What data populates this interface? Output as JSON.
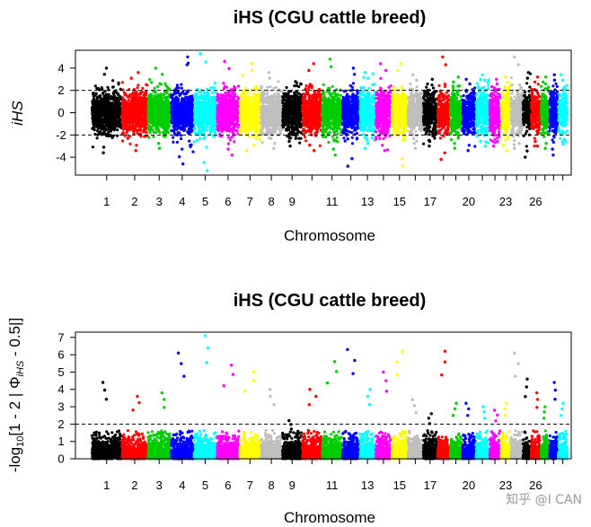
{
  "watermark": "知乎 @I CAN",
  "chart_data": [
    {
      "type": "scatter",
      "subtype": "manhattan",
      "title": "iHS (CGU cattle breed)",
      "xlabel": "Chromosome",
      "ylabel": "iHS",
      "ylim": [
        -5.6,
        5.6
      ],
      "yticks": [
        -4,
        -2,
        0,
        2,
        4
      ],
      "thresholds": [
        2,
        -2
      ],
      "threshold_style": "dashed",
      "grid": false,
      "chromosomes": [
        "1",
        "2",
        "3",
        "4",
        "5",
        "6",
        "7",
        "8",
        "9",
        "10",
        "11",
        "12",
        "13",
        "14",
        "15",
        "16",
        "17",
        "18",
        "19",
        "20",
        "21",
        "22",
        "23",
        "24",
        "25",
        "26",
        "27",
        "28",
        "29"
      ],
      "xtick_labels": [
        "1",
        "2",
        "3",
        "4",
        "5",
        "6",
        "7",
        "8",
        "9",
        "11",
        "13",
        "15",
        "17",
        "20",
        "23",
        "26"
      ],
      "xtick_chromosomes": [
        "1",
        "2",
        "3",
        "4",
        "5",
        "6",
        "7",
        "8",
        "9",
        "11",
        "13",
        "15",
        "17",
        "20",
        "23",
        "26"
      ],
      "colors": [
        "#000000",
        "#ff0000",
        "#00cd00",
        "#0000ff",
        "#00ffff",
        "#ff00ff",
        "#ffff00",
        "#bebebe"
      ],
      "series": [
        {
          "chr": "1",
          "min": -3.6,
          "max": 4.0
        },
        {
          "chr": "2",
          "min": -3.4,
          "max": 3.6
        },
        {
          "chr": "3",
          "min": -3.2,
          "max": 4.0
        },
        {
          "chr": "4",
          "min": -4.6,
          "max": 5.0
        },
        {
          "chr": "5",
          "min": -5.2,
          "max": 5.3
        },
        {
          "chr": "6",
          "min": -3.8,
          "max": 4.6
        },
        {
          "chr": "7",
          "min": -3.4,
          "max": 4.4
        },
        {
          "chr": "8",
          "min": -3.2,
          "max": 3.6
        },
        {
          "chr": "9",
          "min": -3.0,
          "max": 2.8
        },
        {
          "chr": "10",
          "min": -3.4,
          "max": 4.4
        },
        {
          "chr": "11",
          "min": -3.8,
          "max": 4.8
        },
        {
          "chr": "12",
          "min": -4.8,
          "max": 4.0
        },
        {
          "chr": "13",
          "min": -3.2,
          "max": 3.6
        },
        {
          "chr": "14",
          "min": -3.4,
          "max": 4.4
        },
        {
          "chr": "15",
          "min": -4.8,
          "max": 4.4
        },
        {
          "chr": "16",
          "min": -3.2,
          "max": 3.4
        },
        {
          "chr": "17",
          "min": -3.0,
          "max": 3.0
        },
        {
          "chr": "18",
          "min": -4.2,
          "max": 5.0
        },
        {
          "chr": "19",
          "min": -3.2,
          "max": 3.2
        },
        {
          "chr": "20",
          "min": -3.4,
          "max": 3.0
        },
        {
          "chr": "21",
          "min": -3.0,
          "max": 3.4
        },
        {
          "chr": "22",
          "min": -3.0,
          "max": 3.0
        },
        {
          "chr": "23",
          "min": -3.4,
          "max": 3.2
        },
        {
          "chr": "24",
          "min": -3.2,
          "max": 5.0
        },
        {
          "chr": "25",
          "min": -4.0,
          "max": 3.6
        },
        {
          "chr": "26",
          "min": -3.0,
          "max": 3.2
        },
        {
          "chr": "27",
          "min": -3.2,
          "max": 3.2
        },
        {
          "chr": "28",
          "min": -3.8,
          "max": 3.4
        },
        {
          "chr": "29",
          "min": -2.8,
          "max": 3.4
        }
      ]
    },
    {
      "type": "scatter",
      "subtype": "manhattan",
      "title": "iHS (CGU cattle breed)",
      "xlabel": "Chromosome",
      "ylabel_parts": [
        "-log",
        "10",
        "[1 - 2 | Φ",
        "iHS",
        " - 0.5|]"
      ],
      "ylim": [
        0,
        7.3
      ],
      "yticks": [
        0,
        1,
        2,
        3,
        4,
        5,
        6,
        7
      ],
      "thresholds": [
        2
      ],
      "threshold_style": "dashed",
      "grid": false,
      "chromosomes": [
        "1",
        "2",
        "3",
        "4",
        "5",
        "6",
        "7",
        "8",
        "9",
        "10",
        "11",
        "12",
        "13",
        "14",
        "15",
        "16",
        "17",
        "18",
        "19",
        "20",
        "21",
        "22",
        "23",
        "24",
        "25",
        "26",
        "27",
        "28",
        "29"
      ],
      "xtick_labels": [
        "1",
        "2",
        "3",
        "4",
        "5",
        "6",
        "7",
        "8",
        "9",
        "11",
        "13",
        "15",
        "17",
        "20",
        "23",
        "26"
      ],
      "xtick_chromosomes": [
        "1",
        "2",
        "3",
        "4",
        "5",
        "6",
        "7",
        "8",
        "9",
        "11",
        "13",
        "15",
        "17",
        "20",
        "23",
        "26"
      ],
      "colors": [
        "#000000",
        "#ff0000",
        "#00cd00",
        "#0000ff",
        "#00ffff",
        "#ff00ff",
        "#ffff00",
        "#bebebe"
      ],
      "series": [
        {
          "chr": "1",
          "max": 4.4
        },
        {
          "chr": "2",
          "max": 3.6
        },
        {
          "chr": "3",
          "max": 3.8
        },
        {
          "chr": "4",
          "max": 6.1
        },
        {
          "chr": "5",
          "max": 7.1
        },
        {
          "chr": "6",
          "max": 5.4
        },
        {
          "chr": "7",
          "max": 5.0
        },
        {
          "chr": "8",
          "max": 4.0
        },
        {
          "chr": "9",
          "max": 2.2
        },
        {
          "chr": "10",
          "max": 4.0
        },
        {
          "chr": "11",
          "max": 5.6
        },
        {
          "chr": "12",
          "max": 6.3
        },
        {
          "chr": "13",
          "max": 4.0
        },
        {
          "chr": "14",
          "max": 5.0
        },
        {
          "chr": "15",
          "max": 6.2
        },
        {
          "chr": "16",
          "max": 3.4
        },
        {
          "chr": "17",
          "max": 2.6
        },
        {
          "chr": "18",
          "max": 6.2
        },
        {
          "chr": "19",
          "max": 3.2
        },
        {
          "chr": "20",
          "max": 3.2
        },
        {
          "chr": "21",
          "max": 3.0
        },
        {
          "chr": "22",
          "max": 2.8
        },
        {
          "chr": "23",
          "max": 3.2
        },
        {
          "chr": "24",
          "max": 6.1
        },
        {
          "chr": "25",
          "max": 4.6
        },
        {
          "chr": "26",
          "max": 3.8
        },
        {
          "chr": "27",
          "max": 3.0
        },
        {
          "chr": "28",
          "max": 4.4
        },
        {
          "chr": "29",
          "max": 3.2
        }
      ]
    }
  ]
}
